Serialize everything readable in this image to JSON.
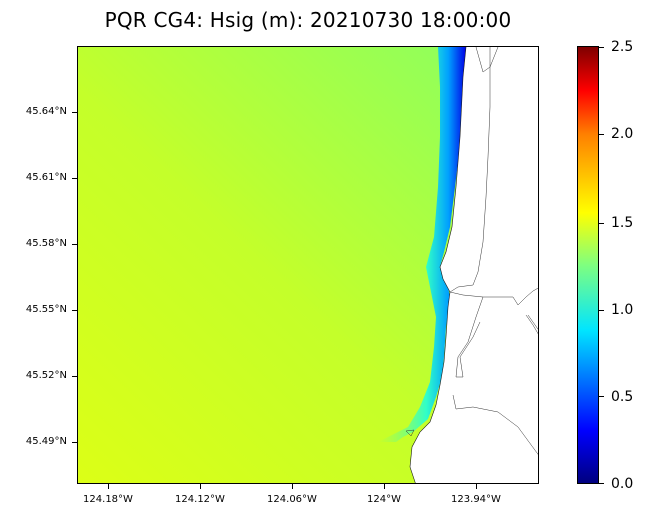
{
  "title": "PQR CG4: Hsig (m): 20210730 18:00:00",
  "lat_labels": [
    "45.64°N",
    "45.61°N",
    "45.58°N",
    "45.55°N",
    "45.52°N",
    "45.49°N"
  ],
  "lon_labels": [
    "124.18°W",
    "124.12°W",
    "124.06°W",
    "124°W",
    "123.94°W"
  ],
  "colorbar": {
    "variable": "Hsig (m)",
    "ticks": [
      "0.0",
      "0.5",
      "1.0",
      "1.5",
      "2.0",
      "2.5"
    ],
    "range": [
      0.0,
      2.5
    ],
    "colormap": "jet"
  },
  "colors": {
    "offshore_wave": "#d4ff1e",
    "nearshore_wave": "#8cff60",
    "shoreline_low": "#0000ff",
    "land": "#ffffff",
    "coastline": "#000000"
  }
}
